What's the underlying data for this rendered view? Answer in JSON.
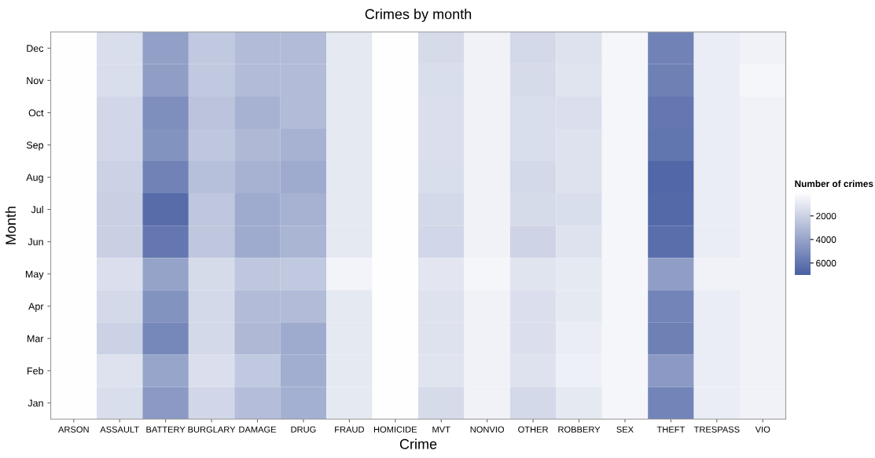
{
  "chart_data": {
    "type": "heatmap",
    "title": "Crimes by month",
    "xlabel": "Crime",
    "ylabel": "Month",
    "clabel": "Number of crimes",
    "categories": [
      "ARSON",
      "ASSAULT",
      "BATTERY",
      "BURGLARY",
      "DAMAGE",
      "DRUG",
      "FRAUD",
      "HOMICIDE",
      "MVT",
      "NONVIO",
      "OTHER",
      "ROBBERY",
      "SEX",
      "THEFT",
      "TRESPASS",
      "VIO"
    ],
    "y_categories": [
      "Dec",
      "Nov",
      "Oct",
      "Sep",
      "Aug",
      "Jul",
      "Jun",
      "May",
      "Apr",
      "Mar",
      "Feb",
      "Jan"
    ],
    "cells": [
      [
        50,
        1500,
        4200,
        2400,
        3000,
        3000,
        1000,
        40,
        1600,
        600,
        1700,
        1300,
        400,
        5500,
        800,
        600
      ],
      [
        50,
        1500,
        4300,
        2400,
        3000,
        3000,
        1000,
        40,
        1500,
        600,
        1600,
        1200,
        400,
        5600,
        800,
        400
      ],
      [
        50,
        1800,
        5000,
        2600,
        3400,
        3000,
        1000,
        40,
        1400,
        600,
        1500,
        1400,
        400,
        6000,
        800,
        600
      ],
      [
        50,
        1800,
        4800,
        2500,
        3100,
        3400,
        1000,
        40,
        1400,
        600,
        1500,
        1300,
        400,
        6100,
        800,
        600
      ],
      [
        50,
        2000,
        5500,
        2800,
        3400,
        3700,
        1000,
        40,
        1500,
        600,
        1700,
        1300,
        400,
        6700,
        800,
        600
      ],
      [
        50,
        2100,
        6500,
        2500,
        3700,
        3400,
        1000,
        40,
        1700,
        600,
        1600,
        1500,
        400,
        6600,
        800,
        600
      ],
      [
        50,
        2100,
        6000,
        2500,
        3700,
        3300,
        1000,
        40,
        1800,
        600,
        1900,
        1300,
        400,
        6400,
        800,
        600
      ],
      [
        50,
        1400,
        4100,
        1600,
        2500,
        2400,
        500,
        40,
        1100,
        400,
        1200,
        1000,
        400,
        4300,
        600,
        600
      ],
      [
        50,
        1700,
        4800,
        1700,
        3000,
        3000,
        1000,
        40,
        1300,
        600,
        1400,
        1000,
        400,
        5400,
        800,
        600
      ],
      [
        50,
        2000,
        5300,
        1700,
        3100,
        3700,
        1000,
        40,
        1300,
        600,
        1400,
        800,
        400,
        5600,
        800,
        600
      ],
      [
        50,
        1300,
        4000,
        1400,
        2400,
        3600,
        1000,
        40,
        1200,
        600,
        1300,
        700,
        400,
        4500,
        800,
        600
      ],
      [
        50,
        1500,
        4500,
        1800,
        2900,
        3500,
        1000,
        40,
        1600,
        600,
        1700,
        1000,
        400,
        5400,
        800,
        600
      ]
    ],
    "clim": [
      0,
      7000
    ],
    "cticks": [
      2000,
      4000,
      6000
    ]
  }
}
